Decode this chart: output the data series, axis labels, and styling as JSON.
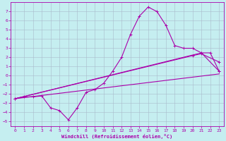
{
  "xlabel": "Windchill (Refroidissement éolien,°C)",
  "xlim": [
    -0.5,
    23.5
  ],
  "ylim": [
    -5.5,
    8.0
  ],
  "yticks": [
    -5,
    -4,
    -3,
    -2,
    -1,
    0,
    1,
    2,
    3,
    4,
    5,
    6,
    7
  ],
  "xticks": [
    0,
    1,
    2,
    3,
    4,
    5,
    6,
    7,
    8,
    9,
    10,
    11,
    12,
    13,
    14,
    15,
    16,
    17,
    18,
    19,
    20,
    21,
    22,
    23
  ],
  "background_color": "#c5eef0",
  "grid_color": "#aabbcc",
  "line_color": "#aa00aa",
  "curve_main_x": [
    0,
    1,
    2,
    3,
    4,
    5,
    6,
    7,
    8,
    9,
    10,
    11,
    12,
    13,
    14,
    15,
    16,
    17,
    18,
    19,
    20,
    21,
    22,
    23
  ],
  "curve_main_y": [
    -2.5,
    -2.3,
    -2.3,
    -2.2,
    -3.5,
    -3.8,
    -4.8,
    -3.5,
    -1.8,
    -1.5,
    -0.8,
    0.5,
    2.0,
    4.5,
    6.5,
    7.5,
    7.0,
    5.5,
    3.3,
    3.0,
    3.0,
    2.5,
    2.5,
    0.5
  ],
  "line1_x": [
    0,
    21,
    23
  ],
  "line1_y": [
    -2.5,
    2.5,
    0.5
  ],
  "line2_x": [
    0,
    20,
    21,
    23
  ],
  "line2_y": [
    -2.5,
    2.2,
    2.4,
    1.5
  ],
  "line3_x": [
    0,
    23
  ],
  "line3_y": [
    -2.5,
    0.2
  ]
}
